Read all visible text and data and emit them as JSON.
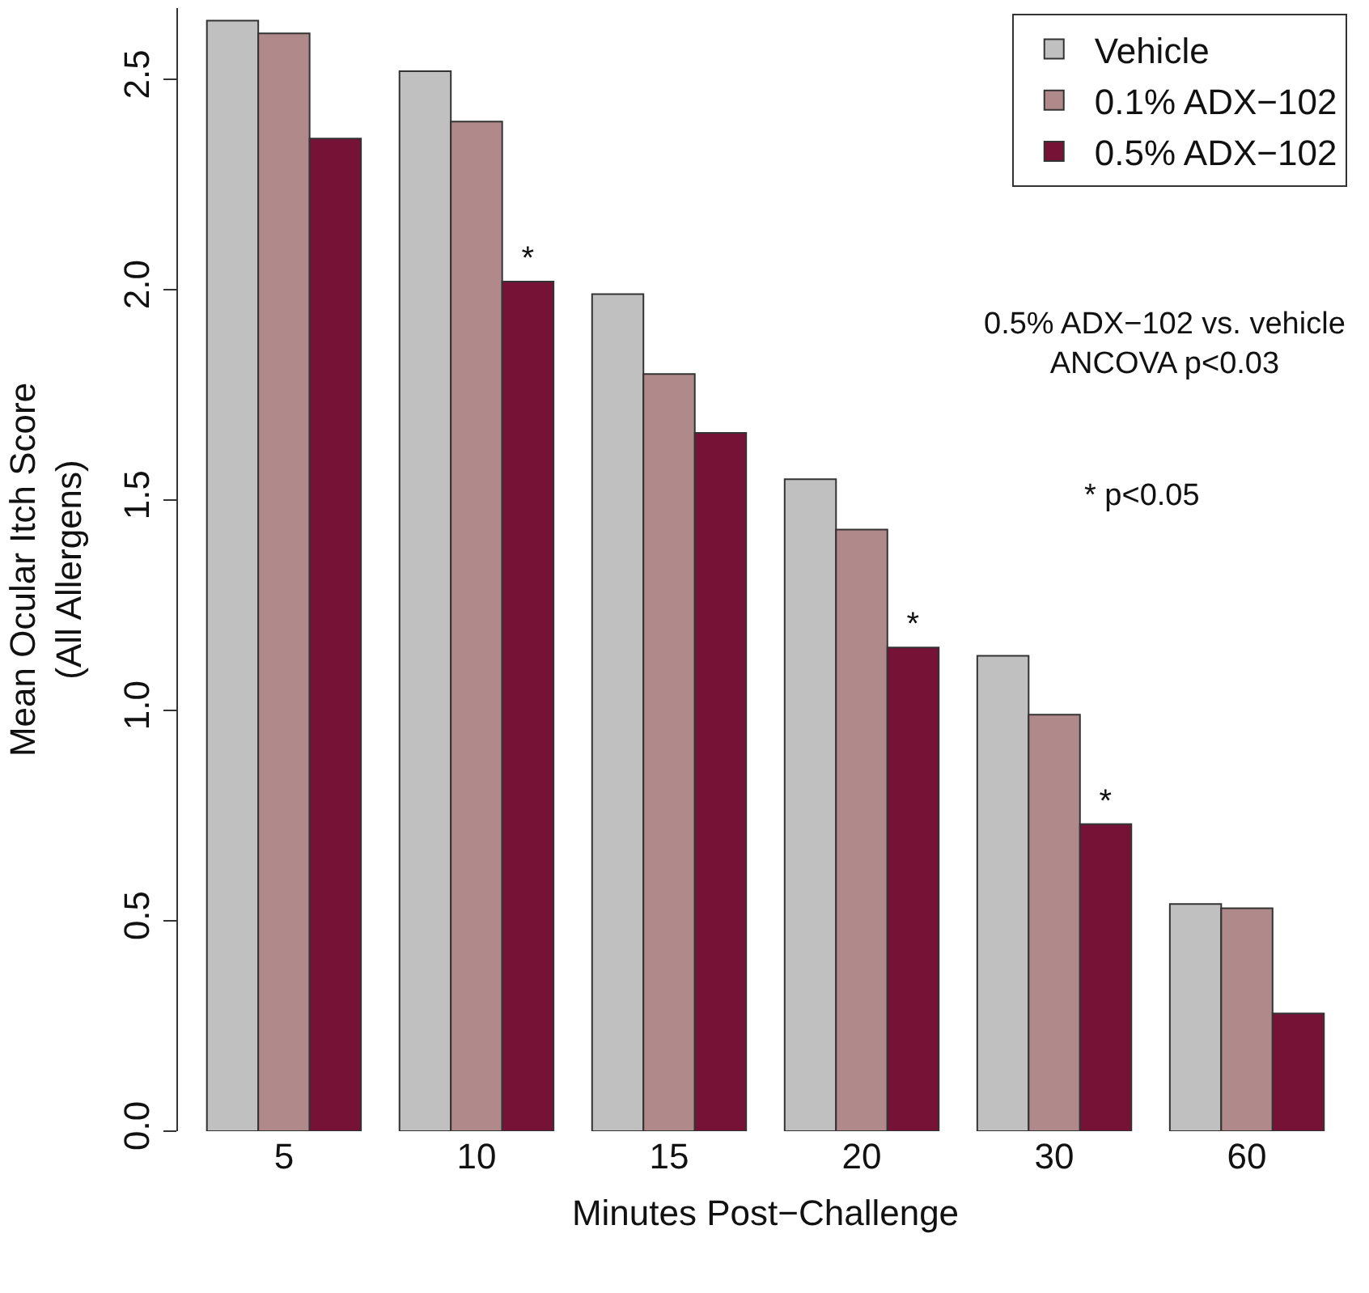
{
  "chart_data": {
    "type": "bar",
    "xlabel": "Minutes Post−Challenge",
    "ylabel": "Mean Ocular Itch Score\n(All Allergens)",
    "categories": [
      "5",
      "10",
      "15",
      "20",
      "30",
      "60"
    ],
    "series": [
      {
        "name": "Vehicle",
        "color": "#c0c0c0",
        "values": [
          2.64,
          2.52,
          1.99,
          1.55,
          1.13,
          0.54
        ]
      },
      {
        "name": "0.1% ADX−102",
        "color": "#b08a8a",
        "values": [
          2.61,
          2.4,
          1.8,
          1.43,
          0.99,
          0.53
        ]
      },
      {
        "name": "0.5% ADX−102",
        "color": "#761236",
        "values": [
          2.36,
          2.02,
          1.66,
          1.15,
          0.73,
          0.28
        ],
        "value_labels": [
          null,
          "*",
          null,
          "*",
          "*",
          null
        ]
      }
    ],
    "ylim": [
      0,
      2.67
    ],
    "yticks": [
      {
        "value": 0,
        "label": "0.0"
      },
      {
        "value": 0.5,
        "label": "0.5"
      },
      {
        "value": 1,
        "label": "1.0"
      },
      {
        "value": 1.5,
        "label": "1.5"
      },
      {
        "value": 2,
        "label": "2.0"
      },
      {
        "value": 2.5,
        "label": "2.5"
      }
    ],
    "legend": "top right",
    "annotations": [
      "0.5% ADX−102 vs. vehicle\nANCOVA p<0.03",
      "* p<0.05"
    ]
  }
}
